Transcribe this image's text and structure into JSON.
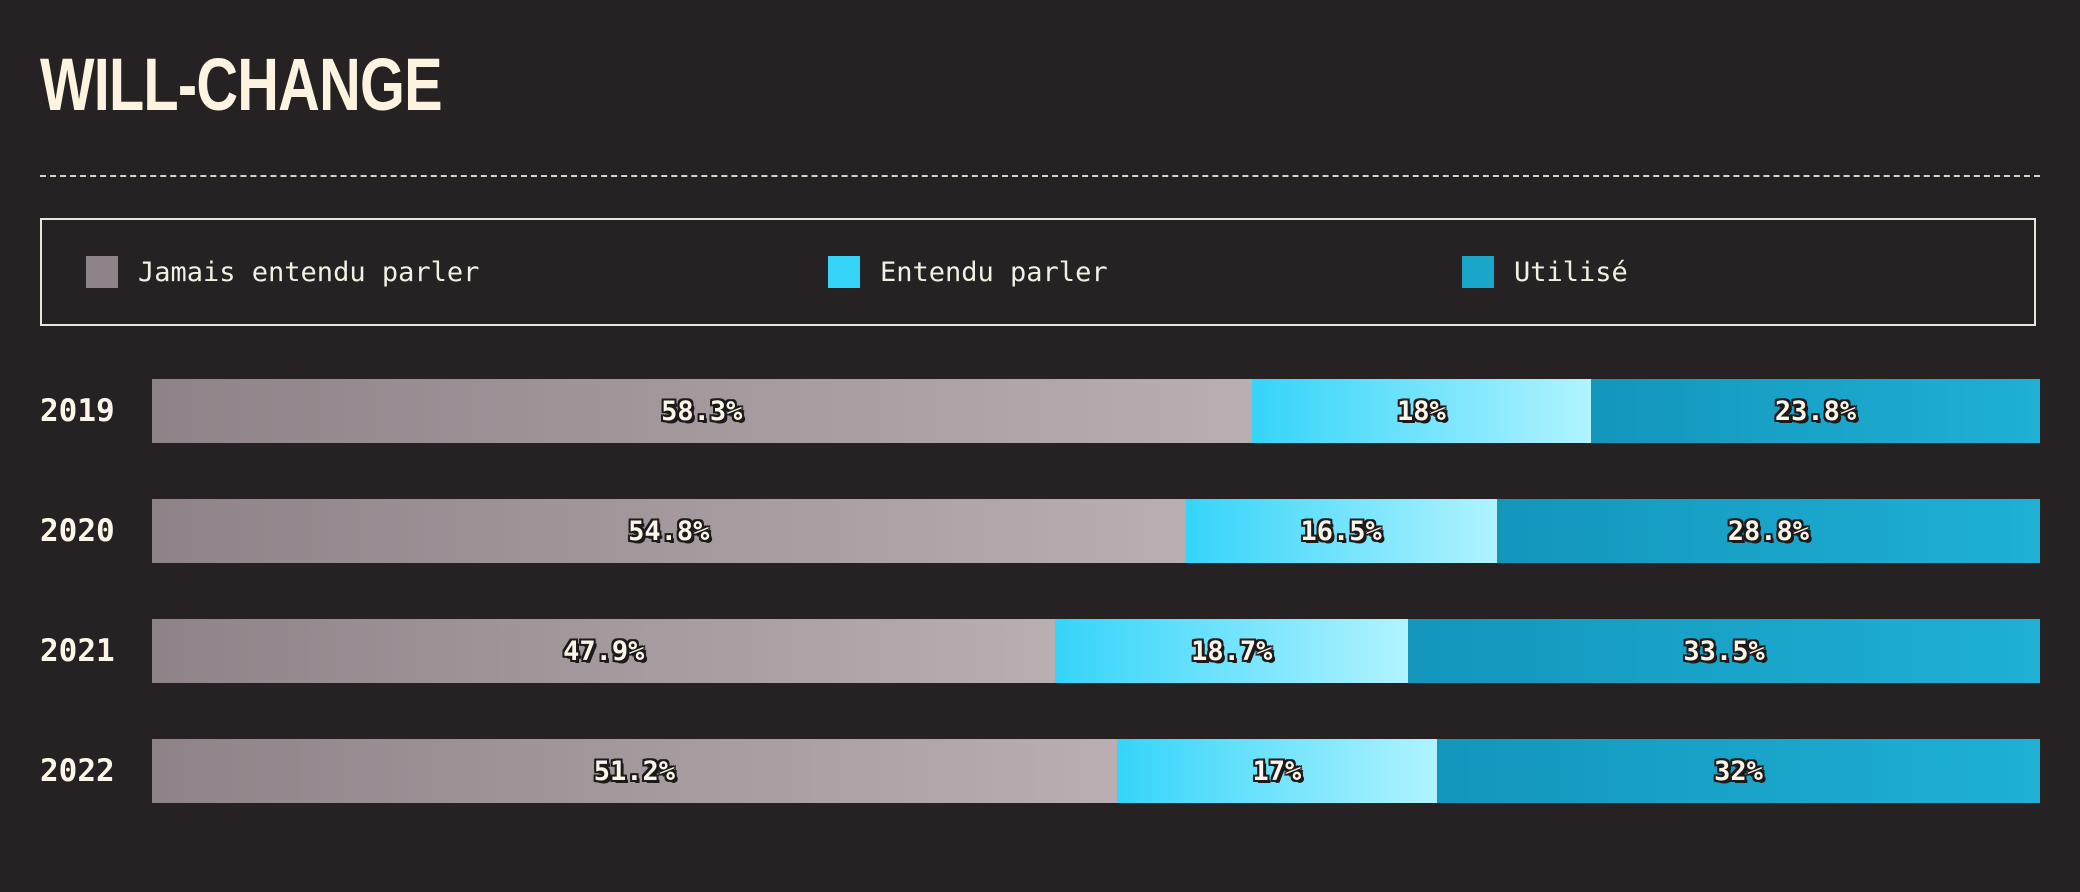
{
  "title": "WILL-CHANGE",
  "colors": {
    "never_heard": "#8e8388",
    "heard": "#35d4f9",
    "used": "#1aa6c9"
  },
  "legend": [
    {
      "label": "Jamais entendu parler",
      "color": "#8e8388"
    },
    {
      "label": "Entendu parler",
      "color": "#35d4f9"
    },
    {
      "label": "Utilisé",
      "color": "#1aa6c9"
    }
  ],
  "chart_data": {
    "type": "bar",
    "orientation": "horizontal",
    "stacked": true,
    "normalized": true,
    "title": "WILL-CHANGE",
    "categories": [
      "2019",
      "2020",
      "2021",
      "2022"
    ],
    "series": [
      {
        "name": "Jamais entendu parler",
        "values": [
          58.3,
          54.8,
          47.9,
          51.2
        ],
        "labels": [
          "58.3%",
          "54.8%",
          "47.9%",
          "51.2%"
        ]
      },
      {
        "name": "Entendu parler",
        "values": [
          18,
          16.5,
          18.7,
          17
        ],
        "labels": [
          "18%",
          "16.5%",
          "18.7%",
          "17%"
        ]
      },
      {
        "name": "Utilisé",
        "values": [
          23.8,
          28.8,
          33.5,
          32
        ],
        "labels": [
          "23.8%",
          "28.8%",
          "33.5%",
          "32%"
        ]
      }
    ],
    "legend_position": "top",
    "grid": false
  }
}
